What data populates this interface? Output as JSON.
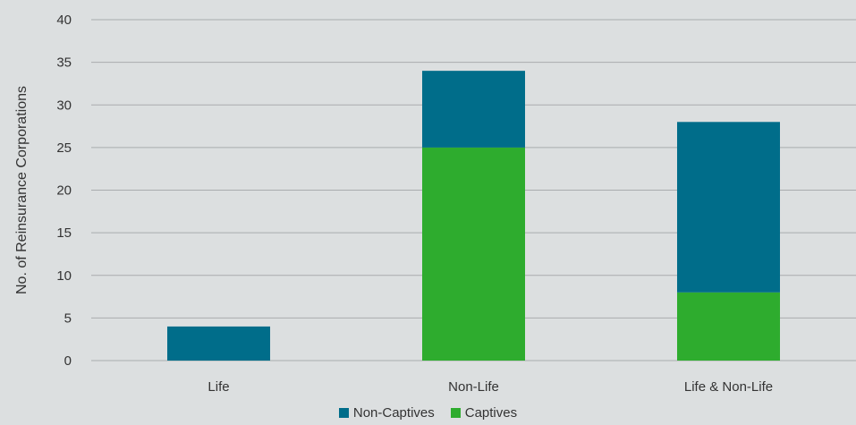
{
  "chart_data": {
    "type": "bar",
    "stacked": true,
    "categories": [
      "Life",
      "Non-Life",
      "Life & Non-Life"
    ],
    "series": [
      {
        "name": "Captives",
        "values": [
          0,
          25,
          8
        ],
        "color": "#2eac2e"
      },
      {
        "name": "Non-Captives",
        "values": [
          4,
          9,
          20
        ],
        "color": "#006d8a"
      }
    ],
    "legend_order": [
      "Non-Captives",
      "Captives"
    ],
    "ylabel": "No. of Reinsurance Corporations",
    "ylim": [
      0,
      40
    ],
    "yticks": [
      0,
      5,
      10,
      15,
      20,
      25,
      30,
      35,
      40
    ],
    "grid": true,
    "legend_position": "bottom"
  }
}
